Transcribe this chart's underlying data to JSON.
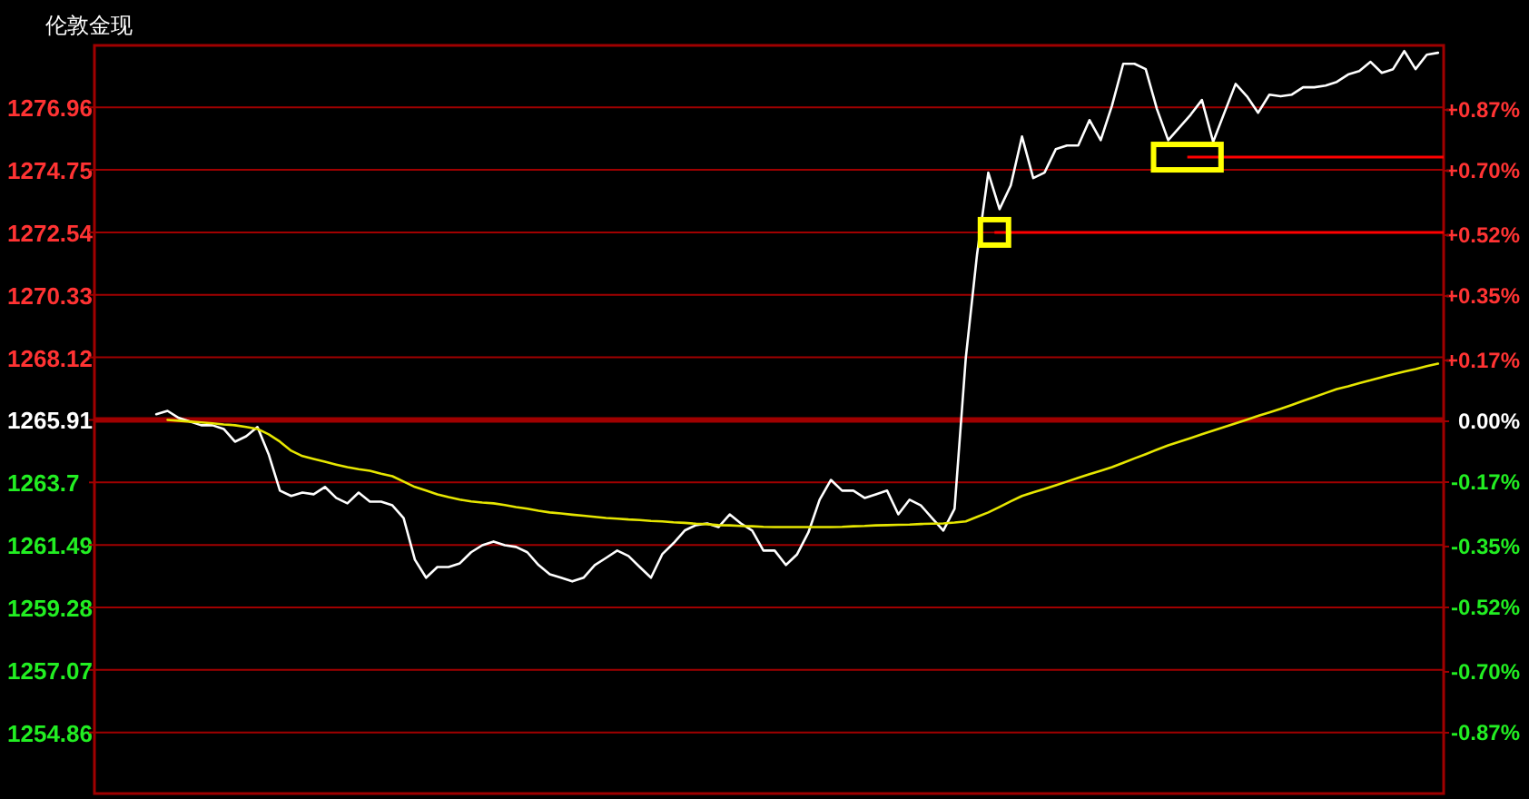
{
  "chart_data": {
    "type": "line",
    "title": "伦敦金现",
    "categories": [
      null,
      null,
      null,
      null,
      null,
      null,
      null,
      null,
      null,
      null,
      null,
      null,
      null,
      null,
      null,
      null,
      null,
      null,
      null,
      null,
      null,
      null,
      null,
      null,
      null,
      null,
      null,
      null,
      null,
      null,
      null,
      null,
      null,
      null,
      null,
      null,
      null,
      null,
      null,
      null,
      null,
      null,
      null,
      null,
      null,
      null,
      null,
      null,
      null,
      null,
      null,
      null,
      null,
      null,
      null,
      null,
      null,
      null,
      null,
      null,
      null,
      null,
      null,
      null,
      null,
      null,
      null,
      null,
      null,
      null,
      null,
      null,
      null,
      null,
      null,
      null,
      null,
      null,
      null,
      null,
      null,
      null,
      null,
      null,
      null,
      null,
      null,
      null,
      null,
      null,
      null,
      null,
      null,
      null,
      null,
      null,
      null,
      null,
      null,
      null,
      null,
      null,
      null,
      null,
      null,
      null,
      null,
      null,
      null,
      null,
      null,
      null,
      null,
      null,
      null,
      null,
      null,
      null,
      null,
      null
    ],
    "series": [
      {
        "color": "#ffffff",
        "values": [
          null,
          null,
          null,
          null,
          null,
          1266.11,
          1266.23,
          1265.98,
          1265.85,
          1265.72,
          1265.72,
          1265.59,
          1265.14,
          1265.33,
          1265.66,
          1264.69,
          1263.41,
          1263.22,
          1263.34,
          1263.28,
          1263.54,
          1263.15,
          1262.96,
          1263.34,
          1263.02,
          1263.02,
          1262.89,
          1262.44,
          1260.97,
          1260.33,
          1260.71,
          1260.71,
          1260.84,
          1261.23,
          1261.48,
          1261.61,
          1261.48,
          1261.42,
          1261.23,
          1260.78,
          1260.45,
          1260.33,
          1260.2,
          1260.33,
          1260.78,
          1261.03,
          1261.29,
          1261.1,
          1260.71,
          1260.33,
          1261.16,
          1261.55,
          1262.0,
          1262.19,
          1262.25,
          1262.12,
          1262.57,
          1262.25,
          1262.0,
          1261.29,
          1261.29,
          1260.78,
          1261.16,
          1261.93,
          1263.09,
          1263.79,
          1263.41,
          1263.41,
          1263.15,
          1263.28,
          1263.41,
          1262.57,
          1263.09,
          1262.89,
          1262.44,
          1262.0,
          1262.77,
          1268.1,
          1271.76,
          1274.65,
          1273.36,
          1274.2,
          1275.93,
          1274.46,
          1274.65,
          1275.48,
          1275.61,
          1275.61,
          1276.51,
          1275.8,
          1277.02,
          1278.5,
          1278.5,
          1278.31,
          1276.9,
          1275.8,
          1276.25,
          1276.7,
          1277.22,
          1275.74,
          1276.77,
          1277.79,
          1277.35,
          1276.77,
          1277.41,
          1277.35,
          1277.41,
          1277.67,
          1277.67,
          1277.73,
          1277.86,
          1278.12,
          1278.24,
          1278.57,
          1278.18,
          1278.31,
          1278.95,
          1278.31,
          1278.82,
          1278.89
        ]
      },
      {
        "color": "#e6e600",
        "values": [
          null,
          null,
          null,
          null,
          null,
          null,
          1265.91,
          1265.88,
          1265.85,
          1265.82,
          1265.79,
          1265.75,
          1265.72,
          1265.66,
          1265.59,
          1265.4,
          1265.14,
          1264.82,
          1264.63,
          1264.53,
          1264.43,
          1264.33,
          1264.24,
          1264.17,
          1264.11,
          1264.01,
          1263.92,
          1263.73,
          1263.54,
          1263.41,
          1263.28,
          1263.18,
          1263.09,
          1263.03,
          1262.99,
          1262.96,
          1262.9,
          1262.83,
          1262.77,
          1262.7,
          1262.64,
          1262.6,
          1262.56,
          1262.52,
          1262.48,
          1262.44,
          1262.42,
          1262.39,
          1262.37,
          1262.34,
          1262.32,
          1262.29,
          1262.27,
          1262.24,
          1262.22,
          1262.19,
          1262.18,
          1262.16,
          1262.15,
          1262.13,
          1262.12,
          1262.12,
          1262.12,
          1262.12,
          1262.12,
          1262.12,
          1262.13,
          1262.15,
          1262.16,
          1262.18,
          1262.19,
          1262.2,
          1262.21,
          1262.23,
          1262.24,
          1262.25,
          1262.28,
          1262.32,
          1262.48,
          1262.64,
          1262.83,
          1263.03,
          1263.22,
          1263.35,
          1263.47,
          1263.6,
          1263.73,
          1263.86,
          1263.99,
          1264.11,
          1264.24,
          1264.39,
          1264.55,
          1264.7,
          1264.86,
          1265.01,
          1265.14,
          1265.27,
          1265.4,
          1265.53,
          1265.66,
          1265.79,
          1265.92,
          1266.05,
          1266.17,
          1266.3,
          1266.44,
          1266.58,
          1266.72,
          1266.86,
          1267.0,
          1267.1,
          1267.21,
          1267.31,
          1267.42,
          1267.52,
          1267.62,
          1267.71,
          1267.81,
          1267.9
        ]
      }
    ],
    "ylim": [
      1252.7,
      1279.15
    ],
    "yticks": [
      1254.86,
      1257.07,
      1259.28,
      1261.49,
      1263.7,
      1265.91,
      1268.12,
      1270.33,
      1272.54,
      1274.75,
      1276.96
    ],
    "y2lim": [
      -1.04,
      1.05
    ],
    "y2ticks": [
      {
        "value": -0.87,
        "label": "-0.87%"
      },
      {
        "value": -0.7,
        "label": "-0.70%"
      },
      {
        "value": -0.52,
        "label": "-0.52%"
      },
      {
        "value": -0.35,
        "label": "-0.35%"
      },
      {
        "value": -0.17,
        "label": "-0.17%"
      },
      {
        "value": 0,
        "label": "0.00%"
      },
      {
        "value": 0.17,
        "label": "+0.17%"
      },
      {
        "value": 0.35,
        "label": "+0.35%"
      },
      {
        "value": 0.52,
        "label": "+0.52%"
      },
      {
        "value": 0.7,
        "label": "+0.70%"
      },
      {
        "value": 0.87,
        "label": "+0.87%"
      }
    ],
    "ref_lines": [
      {
        "axis": "y",
        "value": 1265.91,
        "color": "#a00000"
      },
      {
        "axis": "y",
        "value": 1272.54,
        "color": "#ff0000"
      },
      {
        "axis": "y",
        "value": 1275.2,
        "color": "#ff0000"
      }
    ],
    "grid": "y",
    "tick_labels": "y"
  }
}
